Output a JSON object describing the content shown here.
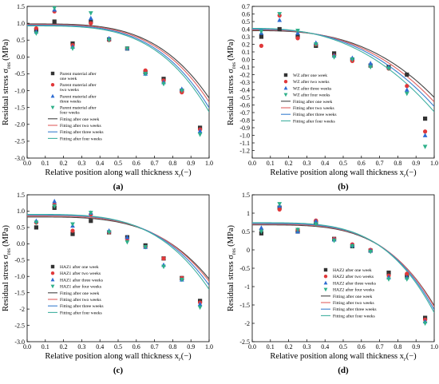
{
  "figure": {
    "colors": {
      "week1": "#333333",
      "week2": "#e0383a",
      "week3": "#2d6bd2",
      "week4": "#2fb08a",
      "fit1": "#444444",
      "fit2": "#e06060",
      "fit3": "#3a7fd0",
      "fit4": "#40b0a0"
    },
    "markers": [
      "square",
      "circle",
      "triangle-up",
      "triangle-down"
    ]
  },
  "chart_data": [
    {
      "panel": "(a)",
      "type": "scatter",
      "xlabel": "Relative position along wall thickness x",
      "xlabel_sub": "r",
      "xlabel_unit": "(−)",
      "ylabel": "Residual stress σ",
      "ylabel_sub": "res",
      "ylabel_unit": "(MPa)",
      "xlim": [
        0.0,
        1.0
      ],
      "ylim": [
        -3.0,
        1.5
      ],
      "xticks": [
        "0.0",
        "0.1",
        "0.2",
        "0.3",
        "0.4",
        "0.5",
        "0.6",
        "0.7",
        "0.8",
        "0.9",
        "1.0"
      ],
      "yticks": [
        "-3.0",
        "-2.5",
        "-2.0",
        "-1.5",
        "-1.0",
        "-0.5",
        "0.0",
        "0.5",
        "1.0",
        "1.5"
      ],
      "ytick_values": [
        -3.0,
        -2.5,
        -2.0,
        -1.5,
        -1.0,
        -0.5,
        0.0,
        0.5,
        1.0,
        1.5
      ],
      "legend_position": "left",
      "series": [
        {
          "name": "Parent material after one week",
          "marker": "square",
          "x": [
            0.05,
            0.15,
            0.25,
            0.35,
            0.45,
            0.55,
            0.65,
            0.75,
            0.85,
            0.95
          ],
          "y": [
            0.8,
            1.05,
            0.4,
            1.05,
            0.52,
            0.25,
            -0.45,
            -0.65,
            -1.0,
            -2.1
          ]
        },
        {
          "name": "Parent material after two weeks",
          "marker": "circle",
          "x": [
            0.05,
            0.15,
            0.25,
            0.35,
            0.45,
            0.55,
            0.65,
            0.75,
            0.85,
            0.95
          ],
          "y": [
            0.85,
            1.35,
            0.35,
            1.0,
            0.5,
            0.25,
            -0.4,
            -0.7,
            -1.05,
            -2.15
          ]
        },
        {
          "name": "Parent material after three weeks",
          "marker": "triangle-up",
          "x": [
            0.05,
            0.15,
            0.25,
            0.35,
            0.45,
            0.55,
            0.65,
            0.75,
            0.85,
            0.95
          ],
          "y": [
            0.75,
            1.4,
            0.3,
            1.15,
            0.55,
            0.25,
            -0.5,
            -0.75,
            -0.95,
            -2.2
          ]
        },
        {
          "name": "Parent material after four weeks",
          "marker": "triangle-down",
          "x": [
            0.05,
            0.15,
            0.25,
            0.35,
            0.45,
            0.55,
            0.65,
            0.75,
            0.85,
            0.95
          ],
          "y": [
            0.7,
            1.45,
            0.25,
            1.3,
            0.5,
            0.25,
            -0.5,
            -0.8,
            -1.0,
            -2.3
          ]
        },
        {
          "name": "Fitting after one week",
          "line": true,
          "fit": {
            "a": 0.98,
            "b": 3.6,
            "c": 2.2
          }
        },
        {
          "name": "Fitting after two weeks",
          "line": true,
          "fit": {
            "a": 0.96,
            "b": 3.6,
            "c": 2.3
          }
        },
        {
          "name": "Fitting after three weeks",
          "line": true,
          "fit": {
            "a": 0.94,
            "b": 3.6,
            "c": 2.45
          }
        },
        {
          "name": "Fitting after four weeks",
          "line": true,
          "fit": {
            "a": 0.92,
            "b": 3.6,
            "c": 2.55
          }
        }
      ]
    },
    {
      "panel": "(b)",
      "type": "scatter",
      "xlabel": "Relative position along wall thickness x",
      "xlabel_sub": "r",
      "xlabel_unit": "(−)",
      "ylabel": "Residual stress σ",
      "ylabel_sub": "res",
      "ylabel_unit": "(MPa)",
      "xlim": [
        0.0,
        1.0
      ],
      "ylim": [
        -1.3,
        0.7
      ],
      "xticks": [
        "0.0",
        "0.1",
        "0.2",
        "0.3",
        "0.4",
        "0.5",
        "0.6",
        "0.7",
        "0.8",
        "0.9",
        "1.0"
      ],
      "yticks": [
        "-1.2",
        "-1.1",
        "-1.0",
        "-0.9",
        "-0.8",
        "-0.7",
        "-0.6",
        "-0.5",
        "-0.4",
        "-0.3",
        "-0.2",
        "-0.1",
        "0.0",
        "0.1",
        "0.2",
        "0.3",
        "0.4",
        "0.5",
        "0.6",
        "0.7"
      ],
      "ytick_values": [
        -1.2,
        -1.1,
        -1.0,
        -0.9,
        -0.8,
        -0.7,
        -0.6,
        -0.5,
        -0.4,
        -0.3,
        -0.2,
        -0.1,
        0.0,
        0.1,
        0.2,
        0.3,
        0.4,
        0.5,
        0.6,
        0.7
      ],
      "legend_position": "left",
      "series": [
        {
          "name": "WZ after one week",
          "marker": "square",
          "x": [
            0.05,
            0.15,
            0.25,
            0.35,
            0.45,
            0.55,
            0.65,
            0.75,
            0.85,
            0.95
          ],
          "y": [
            0.3,
            0.4,
            0.3,
            0.18,
            0.08,
            0.0,
            -0.08,
            -0.1,
            -0.2,
            -0.78
          ]
        },
        {
          "name": "WZ after two weeks",
          "marker": "circle",
          "x": [
            0.05,
            0.15,
            0.25,
            0.35,
            0.45,
            0.55,
            0.65,
            0.75,
            0.85,
            0.95
          ],
          "y": [
            0.18,
            0.58,
            0.28,
            0.2,
            0.05,
            -0.02,
            -0.08,
            -0.12,
            -0.35,
            -0.95
          ]
        },
        {
          "name": "WZ after three weeks",
          "marker": "triangle-up",
          "x": [
            0.05,
            0.15,
            0.25,
            0.35,
            0.45,
            0.55,
            0.65,
            0.75,
            0.85,
            0.95
          ],
          "y": [
            0.35,
            0.52,
            0.35,
            0.22,
            0.05,
            0.02,
            -0.05,
            -0.1,
            -0.4,
            -1.0
          ]
        },
        {
          "name": "WZ after four weeks",
          "marker": "triangle-down",
          "x": [
            0.05,
            0.15,
            0.25,
            0.35,
            0.45,
            0.55,
            0.65,
            0.75,
            0.85,
            0.95
          ],
          "y": [
            0.37,
            0.6,
            0.38,
            0.2,
            0.03,
            0.0,
            -0.1,
            -0.12,
            -0.45,
            -1.15
          ]
        },
        {
          "name": "Fitting after one week",
          "line": true,
          "fit": {
            "a": 0.38,
            "b": 2.8,
            "c": 0.88
          }
        },
        {
          "name": "Fitting after two weeks",
          "line": true,
          "fit": {
            "a": 0.39,
            "b": 2.7,
            "c": 0.95
          }
        },
        {
          "name": "Fitting after three weeks",
          "line": true,
          "fit": {
            "a": 0.4,
            "b": 2.6,
            "c": 1.02
          }
        },
        {
          "name": "Fitting after four weeks",
          "line": true,
          "fit": {
            "a": 0.41,
            "b": 2.5,
            "c": 1.1
          }
        }
      ]
    },
    {
      "panel": "(c)",
      "type": "scatter",
      "xlabel": "Relative position along wall thickness x",
      "xlabel_sub": "r",
      "xlabel_unit": "(−)",
      "ylabel": "Residual stress σ",
      "ylabel_sub": "res",
      "ylabel_unit": "(MPa)",
      "xlim": [
        0.0,
        1.0
      ],
      "ylim": [
        -3.0,
        1.5
      ],
      "xticks": [
        "0.0",
        "0.1",
        "0.2",
        "0.3",
        "0.4",
        "0.5",
        "0.6",
        "0.7",
        "0.8",
        "0.9",
        "1.0"
      ],
      "yticks": [
        "-3.0",
        "-2.5",
        "-2",
        "-1.5",
        "-1.0",
        "-0.5",
        "0.0",
        "0.5",
        "1.0",
        "1.5"
      ],
      "ytick_values": [
        -3.0,
        -2.5,
        -2.0,
        -1.5,
        -1.0,
        -0.5,
        0.0,
        0.5,
        1.0,
        1.5
      ],
      "legend_position": "left",
      "series": [
        {
          "name": "HAZ1 after one week",
          "marker": "square",
          "x": [
            0.05,
            0.15,
            0.25,
            0.35,
            0.45,
            0.55,
            0.65,
            0.75,
            0.85,
            0.95
          ],
          "y": [
            0.5,
            1.1,
            0.3,
            0.7,
            0.35,
            0.2,
            -0.05,
            -0.45,
            -1.05,
            -1.75
          ]
        },
        {
          "name": "HAZ1 after two weeks",
          "marker": "circle",
          "x": [
            0.05,
            0.15,
            0.25,
            0.35,
            0.45,
            0.55,
            0.65,
            0.75,
            0.85,
            0.95
          ],
          "y": [
            0.65,
            1.2,
            0.4,
            0.9,
            0.35,
            0.15,
            -0.1,
            -0.45,
            -1.05,
            -1.8
          ]
        },
        {
          "name": "HAZ1 after three weeks",
          "marker": "triangle-up",
          "x": [
            0.05,
            0.15,
            0.25,
            0.35,
            0.45,
            0.55,
            0.65,
            0.75,
            0.85,
            0.95
          ],
          "y": [
            0.7,
            1.3,
            0.55,
            0.95,
            0.4,
            0.2,
            -0.1,
            -0.65,
            -1.1,
            -1.85
          ]
        },
        {
          "name": "HAZ1 after four weeks",
          "marker": "triangle-down",
          "x": [
            0.05,
            0.15,
            0.25,
            0.35,
            0.45,
            0.55,
            0.65,
            0.75,
            0.85,
            0.95
          ],
          "y": [
            0.65,
            1.15,
            0.6,
            0.95,
            0.35,
            0.05,
            -0.1,
            -0.7,
            -1.1,
            -1.95
          ]
        },
        {
          "name": "Fitting after one week",
          "line": true,
          "fit": {
            "a": 0.82,
            "b": 3.6,
            "c": 1.9
          }
        },
        {
          "name": "Fitting after two weeks",
          "line": true,
          "fit": {
            "a": 0.85,
            "b": 3.6,
            "c": 2.0
          }
        },
        {
          "name": "Fitting after three weeks",
          "line": true,
          "fit": {
            "a": 0.88,
            "b": 3.6,
            "c": 2.15
          }
        },
        {
          "name": "Fitting after four weeks",
          "line": true,
          "fit": {
            "a": 0.9,
            "b": 3.6,
            "c": 2.3
          }
        }
      ]
    },
    {
      "panel": "(d)",
      "type": "scatter",
      "xlabel": "Relative position along wall thickness x",
      "xlabel_sub": "r",
      "xlabel_unit": "(−)",
      "ylabel": "Residual stress σ",
      "ylabel_sub": "res",
      "ylabel_unit": "(MPa)",
      "xlim": [
        0.0,
        1.0
      ],
      "ylim": [
        -2.5,
        1.5
      ],
      "xticks": [
        "0.0",
        "0.1",
        "0.2",
        "0.3",
        "0.4",
        "0.5",
        "0.6",
        "0.7",
        "0.8",
        "0.9",
        "1.0"
      ],
      "yticks": [
        "-2.5",
        "-2",
        "-1.5",
        "-1",
        "-0.5",
        "0",
        "0.5",
        "1",
        "1.5"
      ],
      "ytick_values": [
        -2.5,
        -2.0,
        -1.5,
        -1.0,
        -0.5,
        0.0,
        0.5,
        1.0,
        1.5
      ],
      "legend_position": "right",
      "series": [
        {
          "name": "HAZ2 after one week",
          "marker": "square",
          "x": [
            0.05,
            0.15,
            0.25,
            0.35,
            0.45,
            0.55,
            0.65,
            0.75,
            0.85,
            0.95
          ],
          "y": [
            0.45,
            1.15,
            0.5,
            0.75,
            0.3,
            0.1,
            -0.02,
            -0.62,
            -0.7,
            -1.85
          ]
        },
        {
          "name": "HAZ2 after two weeks",
          "marker": "circle",
          "x": [
            0.05,
            0.15,
            0.25,
            0.35,
            0.45,
            0.55,
            0.65,
            0.75,
            0.85,
            0.95
          ],
          "y": [
            0.55,
            1.1,
            0.55,
            0.8,
            0.3,
            0.15,
            0.0,
            -0.7,
            -0.65,
            -1.9
          ]
        },
        {
          "name": "HAZ2 after three weeks",
          "marker": "triangle-up",
          "x": [
            0.05,
            0.15,
            0.25,
            0.35,
            0.45,
            0.55,
            0.65,
            0.75,
            0.85,
            0.95
          ],
          "y": [
            0.6,
            1.2,
            0.5,
            0.78,
            0.28,
            0.12,
            -0.02,
            -0.75,
            -0.75,
            -1.95
          ]
        },
        {
          "name": "HAZ2 after four weeks",
          "marker": "triangle-down",
          "x": [
            0.05,
            0.15,
            0.25,
            0.35,
            0.45,
            0.55,
            0.65,
            0.75,
            0.85,
            0.95
          ],
          "y": [
            0.5,
            1.25,
            0.55,
            0.7,
            0.25,
            0.1,
            -0.05,
            -0.8,
            -0.8,
            -2.0
          ]
        },
        {
          "name": "Fitting after one week",
          "line": true,
          "fit": {
            "a": 0.68,
            "b": 3.8,
            "c": 2.2
          }
        },
        {
          "name": "Fitting after two weeks",
          "line": true,
          "fit": {
            "a": 0.7,
            "b": 3.8,
            "c": 2.25
          }
        },
        {
          "name": "Fitting after three weeks",
          "line": true,
          "fit": {
            "a": 0.72,
            "b": 3.8,
            "c": 2.35
          }
        },
        {
          "name": "Fitting after four weeks",
          "line": true,
          "fit": {
            "a": 0.74,
            "b": 3.8,
            "c": 2.45
          }
        }
      ]
    }
  ]
}
